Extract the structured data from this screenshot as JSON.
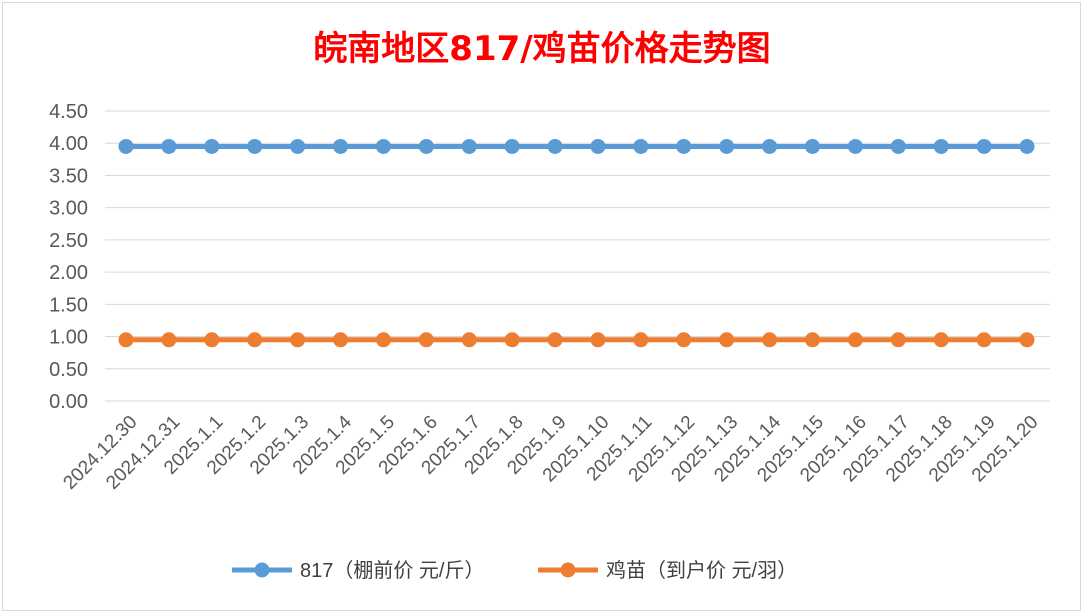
{
  "chart_data": {
    "type": "line",
    "title": "皖南地区817/鸡苗价格走势图",
    "categories": [
      "2024.12.30",
      "2024.12.31",
      "2025.1.1",
      "2025.1.2",
      "2025.1.3",
      "2025.1.4",
      "2025.1.5",
      "2025.1.6",
      "2025.1.7",
      "2025.1.8",
      "2025.1.9",
      "2025.1.10",
      "2025.1.11",
      "2025.1.12",
      "2025.1.13",
      "2025.1.14",
      "2025.1.15",
      "2025.1.16",
      "2025.1.17",
      "2025.1.18",
      "2025.1.19",
      "2025.1.20"
    ],
    "series": [
      {
        "name": "817（棚前价 元/斤）",
        "color": "#5b9bd5",
        "values": [
          3.95,
          3.95,
          3.95,
          3.95,
          3.95,
          3.95,
          3.95,
          3.95,
          3.95,
          3.95,
          3.95,
          3.95,
          3.95,
          3.95,
          3.95,
          3.95,
          3.95,
          3.95,
          3.95,
          3.95,
          3.95,
          3.95
        ]
      },
      {
        "name": "鸡苗（到户价 元/羽）",
        "color": "#ed7d31",
        "values": [
          0.95,
          0.95,
          0.95,
          0.95,
          0.95,
          0.95,
          0.95,
          0.95,
          0.95,
          0.95,
          0.95,
          0.95,
          0.95,
          0.95,
          0.95,
          0.95,
          0.95,
          0.95,
          0.95,
          0.95,
          0.95,
          0.95
        ]
      }
    ],
    "ylim": [
      0,
      4.5
    ],
    "yticks": [
      "0.00",
      "0.50",
      "1.00",
      "1.50",
      "2.00",
      "2.50",
      "3.00",
      "3.50",
      "4.00",
      "4.50"
    ],
    "xlabel": "",
    "ylabel": "",
    "grid": true,
    "legend": "bottom",
    "title_color": "#ff0000"
  }
}
